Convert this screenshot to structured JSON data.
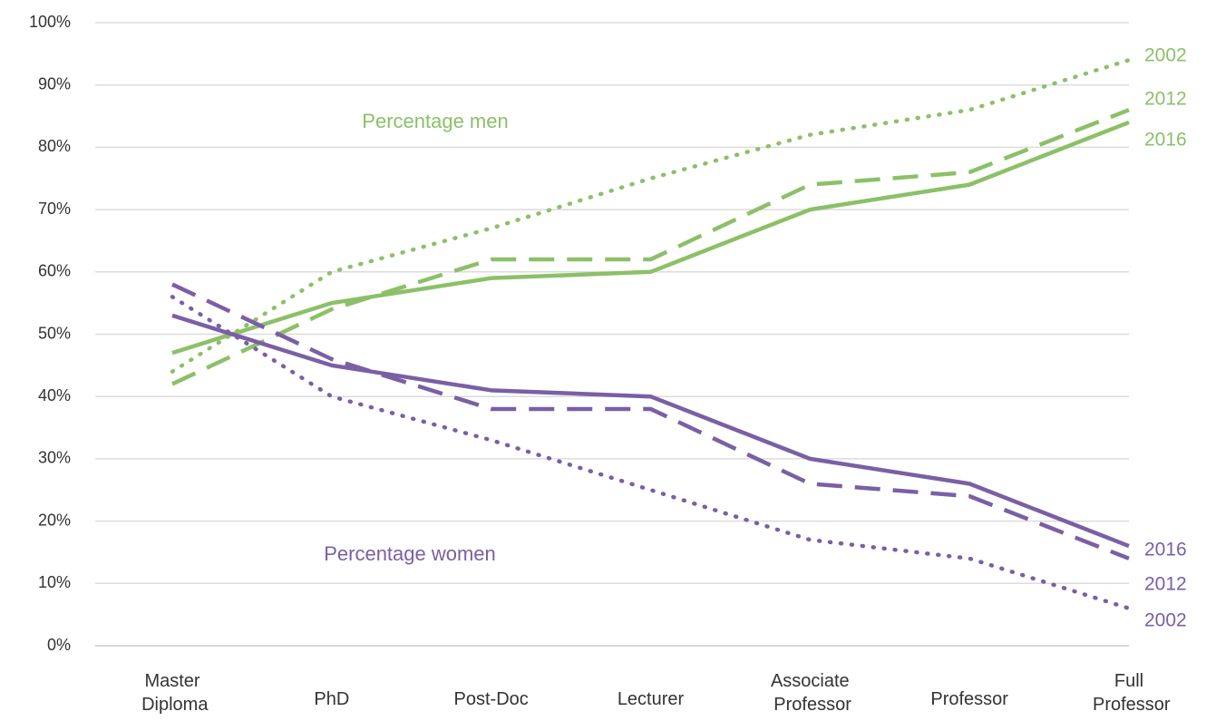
{
  "chart_data": {
    "type": "line",
    "categories": [
      "Master Diploma",
      "PhD",
      "Post-Doc",
      "Lecturer",
      "Associate Professor",
      "Professor",
      "Full Professor"
    ],
    "ylim": [
      0,
      100
    ],
    "yticks": [
      {
        "value": 0,
        "label": "0%"
      },
      {
        "value": 10,
        "label": "10%"
      },
      {
        "value": 20,
        "label": "20%"
      },
      {
        "value": 30,
        "label": "30%"
      },
      {
        "value": 40,
        "label": "40%"
      },
      {
        "value": 50,
        "label": "50%"
      },
      {
        "value": 60,
        "label": "60%"
      },
      {
        "value": 70,
        "label": "70%"
      },
      {
        "value": 80,
        "label": "80%"
      },
      {
        "value": 90,
        "label": "90%"
      },
      {
        "value": 100,
        "label": "100%"
      }
    ],
    "grid": true,
    "series": [
      {
        "name": "2002",
        "color": "#8cc068",
        "style": "dotted",
        "values": [
          44,
          60,
          67,
          75,
          82,
          86,
          94
        ]
      },
      {
        "name": "2012",
        "color": "#8cc068",
        "style": "dashed",
        "values": [
          42,
          54,
          62,
          62,
          74,
          76,
          86
        ]
      },
      {
        "name": "2016",
        "color": "#8cc068",
        "style": "solid",
        "values": [
          47,
          55,
          59,
          60,
          70,
          74,
          84
        ]
      },
      {
        "name": "2016",
        "color": "#7a5fa5",
        "style": "solid",
        "values": [
          53,
          45,
          41,
          40,
          30,
          26,
          16
        ]
      },
      {
        "name": "2012",
        "color": "#7a5fa5",
        "style": "dashed",
        "values": [
          58,
          46,
          38,
          38,
          26,
          24,
          14
        ]
      },
      {
        "name": "2002",
        "color": "#7a5fa5",
        "style": "dotted",
        "values": [
          56,
          40,
          33,
          25,
          17,
          14,
          6
        ]
      }
    ],
    "annotations": [
      {
        "text": "Percentage men",
        "color": "#8cc068"
      },
      {
        "text": "Percentage women",
        "color": "#7a5fa5"
      }
    ]
  }
}
